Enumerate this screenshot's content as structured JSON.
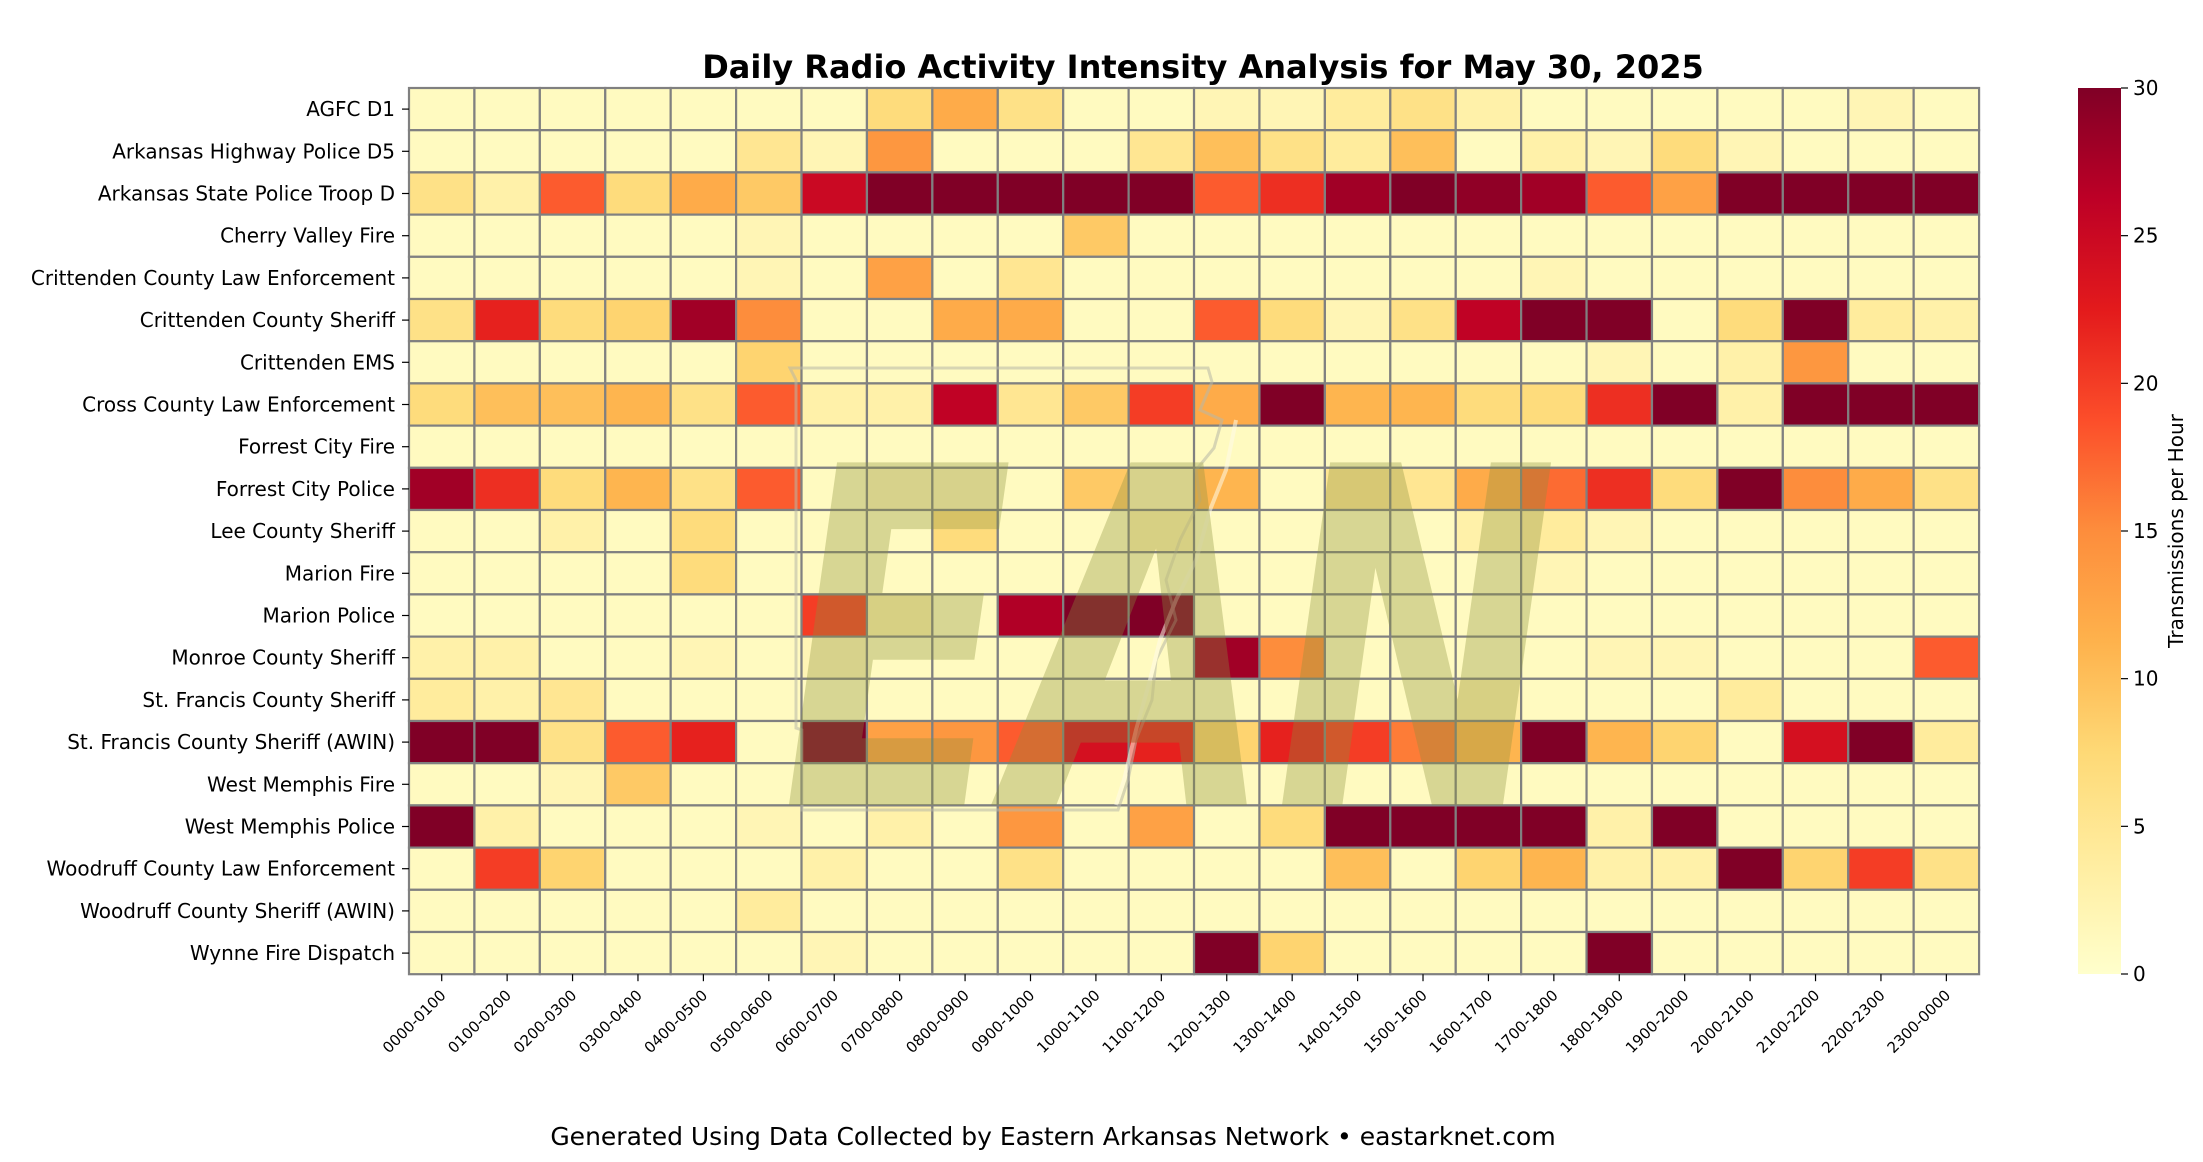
{
  "chart_data": {
    "type": "heatmap",
    "title": "Daily Radio Activity Intensity Analysis for May 30, 2025",
    "colorbar_label": "Transmissions per Hour",
    "colorbar_ticks": [
      0,
      5,
      10,
      15,
      20,
      25,
      30
    ],
    "vmin": 0,
    "vmax": 30,
    "colormap": "YlOrRd",
    "grid": true,
    "x_labels": [
      "0000-0100",
      "0100-0200",
      "0200-0300",
      "0300-0400",
      "0400-0500",
      "0500-0600",
      "0600-0700",
      "0700-0800",
      "0800-0900",
      "0900-1000",
      "1000-1100",
      "1100-1200",
      "1200-1300",
      "1300-1400",
      "1400-1500",
      "1500-1600",
      "1600-1700",
      "1700-1800",
      "1800-1900",
      "1900-2000",
      "2000-2100",
      "2100-2200",
      "2200-2300",
      "2300-0000"
    ],
    "y_labels": [
      "AGFC D1",
      "Arkansas Highway Police D5",
      "Arkansas State Police Troop D",
      "Cherry Valley Fire",
      "Crittenden County Law Enforcement",
      "Crittenden County Sheriff",
      "Crittenden EMS",
      "Cross County Law Enforcement",
      "Forrest City Fire",
      "Forrest City Police",
      "Lee County Sheriff",
      "Marion Fire",
      "Marion Police",
      "Monroe County Sheriff",
      "St. Francis County Sheriff",
      "St. Francis County Sheriff (AWIN)",
      "West Memphis Fire",
      "West Memphis Police",
      "Woodruff County Law Enforcement",
      "Woodruff County Sheriff (AWIN)",
      "Wynne Fire Dispatch"
    ],
    "values": [
      [
        1,
        1,
        1,
        1,
        1,
        1,
        1,
        7,
        12,
        6,
        1,
        1,
        2,
        2,
        4,
        6,
        3,
        1,
        1,
        1,
        1,
        1,
        2,
        1
      ],
      [
        1,
        1,
        1,
        1,
        1,
        5,
        2,
        14,
        1,
        1,
        1,
        5,
        10,
        6,
        4,
        10,
        1,
        3,
        2,
        7,
        2,
        1,
        1,
        1
      ],
      [
        6,
        3,
        18,
        7,
        12,
        9,
        25,
        30,
        30,
        30,
        30,
        30,
        18,
        21,
        28,
        30,
        29,
        28,
        18,
        13,
        30,
        30,
        30,
        30
      ],
      [
        1,
        1,
        1,
        1,
        1,
        2,
        1,
        1,
        1,
        1,
        9,
        1,
        1,
        1,
        1,
        1,
        1,
        1,
        1,
        1,
        1,
        1,
        1,
        1
      ],
      [
        1,
        1,
        1,
        1,
        1,
        2,
        1,
        13,
        1,
        5,
        1,
        1,
        1,
        1,
        1,
        1,
        1,
        2,
        1,
        1,
        1,
        1,
        1,
        1
      ],
      [
        6,
        22,
        7,
        8,
        28,
        15,
        1,
        1,
        12,
        12,
        1,
        1,
        18,
        7,
        2,
        6,
        26,
        30,
        30,
        1,
        7,
        30,
        4,
        3
      ],
      [
        1,
        1,
        1,
        1,
        1,
        8,
        1,
        1,
        1,
        1,
        1,
        1,
        1,
        1,
        1,
        1,
        1,
        1,
        2,
        1,
        3,
        14,
        1,
        1
      ],
      [
        7,
        10,
        10,
        11,
        6,
        18,
        3,
        3,
        26,
        5,
        9,
        20,
        12,
        30,
        11,
        11,
        7,
        7,
        21,
        30,
        3,
        30,
        30,
        30
      ],
      [
        1,
        1,
        1,
        1,
        1,
        1,
        1,
        1,
        1,
        1,
        1,
        1,
        1,
        1,
        1,
        1,
        1,
        1,
        1,
        1,
        1,
        1,
        1,
        1
      ],
      [
        28,
        21,
        7,
        11,
        6,
        18,
        1,
        2,
        2,
        1,
        9,
        2,
        11,
        1,
        5,
        5,
        12,
        17,
        21,
        7,
        30,
        15,
        12,
        6
      ],
      [
        1,
        1,
        3,
        1,
        7,
        1,
        1,
        1,
        7,
        1,
        1,
        3,
        1,
        1,
        1,
        1,
        3,
        4,
        2,
        1,
        1,
        1,
        1,
        1
      ],
      [
        1,
        1,
        1,
        1,
        7,
        1,
        1,
        1,
        1,
        1,
        1,
        1,
        1,
        1,
        1,
        1,
        1,
        2,
        1,
        1,
        1,
        1,
        1,
        1
      ],
      [
        1,
        1,
        1,
        1,
        1,
        1,
        20,
        3,
        1,
        27,
        30,
        30,
        1,
        1,
        1,
        1,
        1,
        1,
        1,
        1,
        1,
        1,
        1,
        1
      ],
      [
        3,
        3,
        1,
        1,
        2,
        1,
        2,
        1,
        1,
        1,
        1,
        1,
        28,
        15,
        1,
        1,
        1,
        1,
        2,
        2,
        1,
        1,
        1,
        18
      ],
      [
        4,
        3,
        5,
        1,
        1,
        1,
        1,
        1,
        1,
        1,
        1,
        1,
        1,
        1,
        1,
        1,
        3,
        1,
        1,
        1,
        4,
        1,
        1,
        1
      ],
      [
        30,
        30,
        6,
        18,
        22,
        1,
        30,
        13,
        14,
        18,
        24,
        22,
        8,
        22,
        20,
        16,
        11,
        30,
        11,
        8,
        1,
        24,
        30,
        4
      ],
      [
        1,
        1,
        2,
        9,
        1,
        1,
        1,
        1,
        1,
        1,
        1,
        1,
        1,
        1,
        1,
        1,
        1,
        1,
        1,
        1,
        1,
        1,
        1,
        1
      ],
      [
        30,
        3,
        1,
        1,
        1,
        2,
        1,
        3,
        1,
        14,
        1,
        13,
        1,
        7,
        30,
        30,
        30,
        30,
        3,
        30,
        1,
        1,
        1,
        1
      ],
      [
        1,
        20,
        8,
        1,
        1,
        1,
        3,
        1,
        1,
        6,
        1,
        1,
        1,
        1,
        10,
        1,
        8,
        11,
        3,
        3,
        30,
        8,
        20,
        6
      ],
      [
        1,
        1,
        1,
        1,
        1,
        4,
        1,
        1,
        1,
        1,
        1,
        1,
        1,
        1,
        1,
        1,
        1,
        1,
        1,
        1,
        1,
        1,
        1,
        1
      ],
      [
        1,
        1,
        1,
        1,
        1,
        1,
        2,
        1,
        1,
        1,
        1,
        1,
        30,
        8,
        1,
        1,
        1,
        1,
        30,
        1,
        1,
        1,
        1,
        1
      ]
    ]
  },
  "watermark": "EAN",
  "footer": "Generated Using Data Collected by Eastern Arkansas Network • eastarknet.com"
}
